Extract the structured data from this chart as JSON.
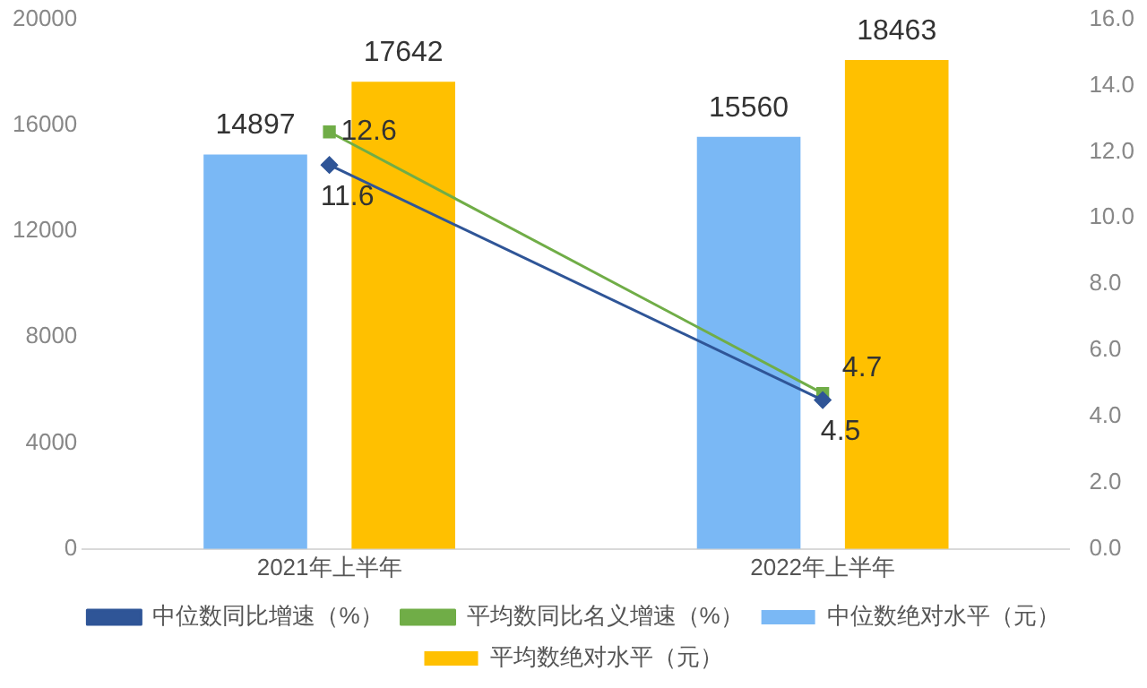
{
  "chart_data": {
    "type": "bar",
    "categories": [
      "2021年上半年",
      "2022年上半年"
    ],
    "series": [
      {
        "name": "中位数绝对水平（元）",
        "color": "#7ab8f5",
        "values": [
          14897,
          15560
        ]
      },
      {
        "name": "平均数绝对水平（元）",
        "color": "#ffc000",
        "values": [
          17642,
          18463
        ]
      },
      {
        "name": "中位数同比增速（%）",
        "type": "line",
        "axis": "y2",
        "marker": "diamond",
        "color": "#2f5597",
        "values": [
          11.6,
          4.5
        ]
      },
      {
        "name": "平均数同比名义增速（%）",
        "type": "line",
        "axis": "y2",
        "marker": "square",
        "color": "#70ad47",
        "values": [
          12.6,
          4.7
        ]
      }
    ],
    "ylim": [
      0,
      20000
    ],
    "yticks": [
      0,
      4000,
      8000,
      12000,
      16000,
      20000
    ],
    "y2lim": [
      0,
      16
    ],
    "y2ticks": [
      {
        "value": 0,
        "label": "0.0"
      },
      {
        "value": 2,
        "label": "2.0"
      },
      {
        "value": 4,
        "label": "4.0"
      },
      {
        "value": 6,
        "label": "6.0"
      },
      {
        "value": 8,
        "label": "8.0"
      },
      {
        "value": 10,
        "label": "10.0"
      },
      {
        "value": 12,
        "label": "12.0"
      },
      {
        "value": 14,
        "label": "14.0"
      },
      {
        "value": 16,
        "label": "16.0"
      }
    ],
    "grid": false,
    "legend": "bottom",
    "data_labels": true
  }
}
